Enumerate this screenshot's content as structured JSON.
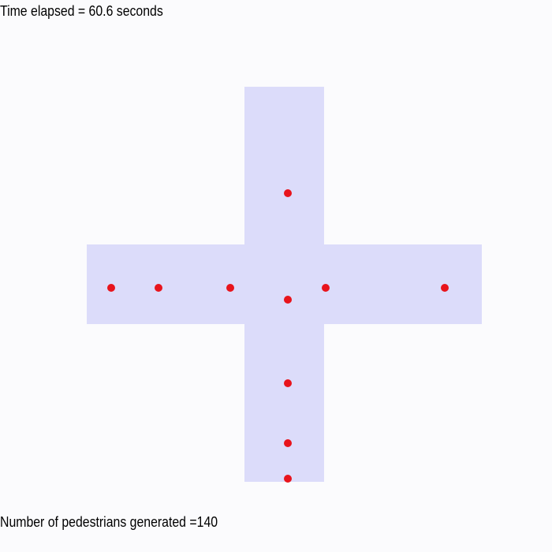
{
  "status": {
    "time_elapsed": "Time elapsed = 60.6 seconds",
    "pedestrians_generated": "Number of pedestrians generated =140"
  },
  "colors": {
    "background": "#fbfbfd",
    "walkway": "#dcdcfa",
    "pedestrian": "#e8141c",
    "text": "#000000"
  },
  "icons": {
    "pedestrian": "red-dot"
  },
  "pedestrian_count_visible": 10
}
